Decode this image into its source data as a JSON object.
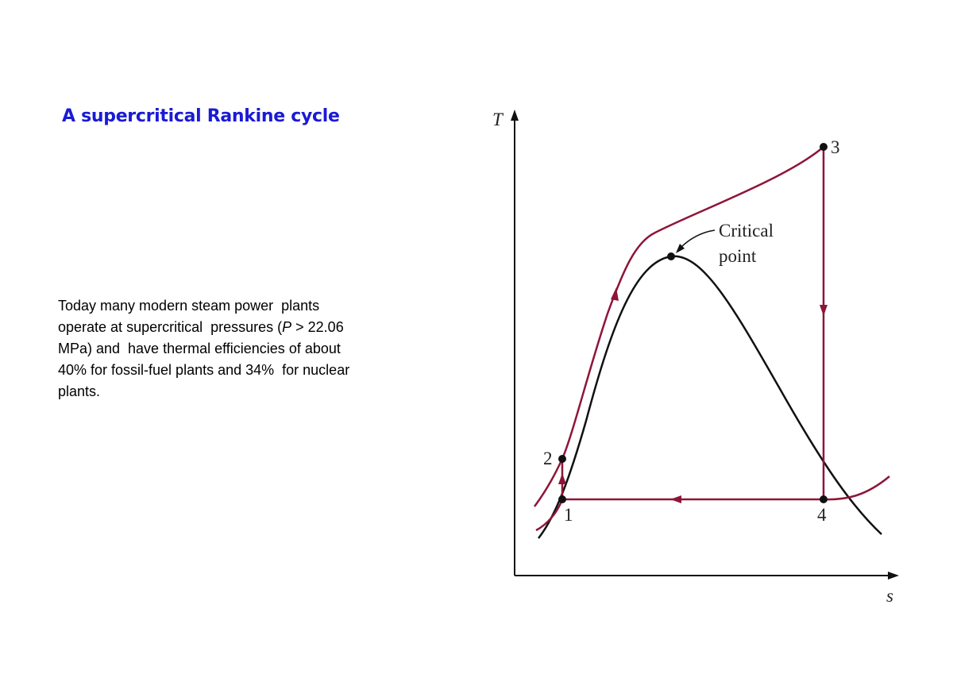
{
  "title": "A supercritical Rankine cycle",
  "body": [
    [
      "Today many modern steam power  plants"
    ],
    [
      "operate at supercritical  pressures (",
      "P",
      " > 22.06"
    ],
    [
      "MPa) and  have thermal efficiencies of about"
    ],
    [
      "40% for fossil-fuel plants and 34%  for nuclear"
    ],
    [
      "plants."
    ]
  ],
  "diagram": {
    "y_axis_label": "T",
    "x_axis_label": "s",
    "points": [
      "1",
      "2",
      "3",
      "4"
    ],
    "annotation": [
      "Critical",
      "point"
    ]
  }
}
